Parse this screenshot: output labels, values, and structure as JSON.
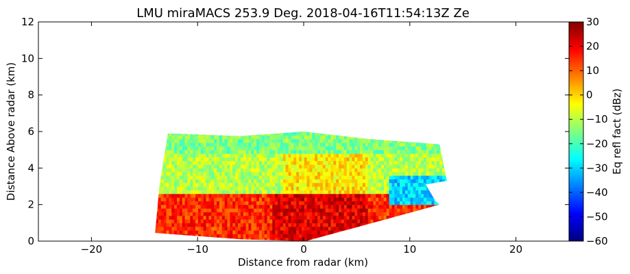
{
  "chart_data": {
    "type": "heatmap",
    "title": "LMU miraMACS 253.9 Deg. 2018-04-16T11:54:13Z  Ze",
    "xlabel": "Distance from radar (km)",
    "ylabel": "Distance Above radar  (km)",
    "xlim": [
      -25,
      25
    ],
    "ylim": [
      0,
      12
    ],
    "xticks": [
      "−20",
      "−10",
      "0",
      "10",
      "20"
    ],
    "xtick_values": [
      -20,
      -10,
      0,
      10,
      20
    ],
    "yticks": [
      "0",
      "2",
      "4",
      "6",
      "8",
      "10",
      "12"
    ],
    "ytick_values": [
      0,
      2,
      4,
      6,
      8,
      10,
      12
    ],
    "grid": false,
    "colormap": "jet",
    "colorbar": {
      "label": "Eq refl fact (dBz)",
      "range": [
        -60,
        30
      ],
      "ticks": [
        "30",
        "20",
        "10",
        "0",
        "−10",
        "−20",
        "−30",
        "−40",
        "−50",
        "−60"
      ],
      "tick_values": [
        30,
        20,
        10,
        0,
        -10,
        -20,
        -30,
        -40,
        -50,
        -60
      ]
    },
    "echo_region": {
      "description_units": "km",
      "top_height_km": 6.0,
      "left_edge_km": -14.0,
      "right_edge_km": 13.5,
      "dominant_values_dbz": {
        "upper_layer_5_to_6km": -15,
        "mid_layer_3_to_5km": -10,
        "bright_band_near_surface_0_to_2km": 15,
        "cloud_edges_right": -30
      }
    }
  }
}
